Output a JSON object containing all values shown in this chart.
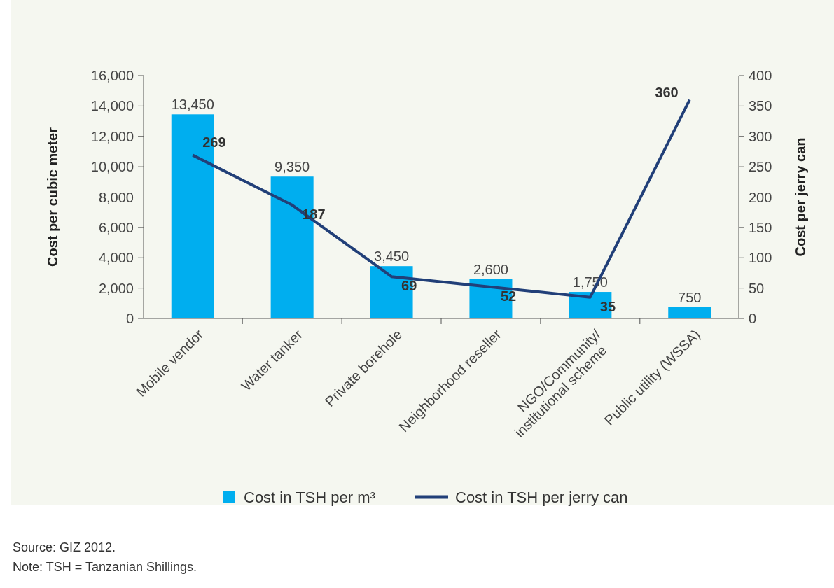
{
  "chart_data": {
    "type": "bar",
    "categories": [
      "Mobile vendor",
      "Water tanker",
      "Private borehole",
      "Neighborhood reseller",
      "NGO/Community/\ninstitutional scheme",
      "Public utility (WSSA)"
    ],
    "series": [
      {
        "name": "Cost in TSH per m³",
        "color": "#00aeef",
        "values": [
          13450,
          9350,
          3450,
          2600,
          1750,
          750
        ],
        "value_labels": [
          "13,450",
          "9,350",
          "3,450",
          "2,600",
          "1,750",
          "750"
        ]
      },
      {
        "name": "Cost in TSH per jerry can",
        "type": "line",
        "axis": "y2",
        "color": "#213f78",
        "values": [
          269,
          187,
          69,
          52,
          35,
          360
        ],
        "value_labels": [
          "269",
          "187",
          "69",
          "52",
          "35",
          "360"
        ]
      }
    ],
    "ylabel": "Cost per cubic meter",
    "y2label": "Cost per jerry can",
    "ylim": [
      0,
      16000
    ],
    "yticks": [
      {
        "value": 0,
        "label": "0"
      },
      {
        "value": 2000,
        "label": "2,000"
      },
      {
        "value": 4000,
        "label": "4,000"
      },
      {
        "value": 6000,
        "label": "6,000"
      },
      {
        "value": 8000,
        "label": "8,000"
      },
      {
        "value": 10000,
        "label": "10,000"
      },
      {
        "value": 12000,
        "label": "12,000"
      },
      {
        "value": 14000,
        "label": "14,000"
      },
      {
        "value": 16000,
        "label": "16,000"
      }
    ],
    "y2lim": [
      0,
      400
    ],
    "y2ticks": [
      0,
      50,
      100,
      150,
      200,
      250,
      300,
      350,
      400
    ],
    "legend": "bottom",
    "grid": false,
    "marker": "none",
    "annotations": [
      "Source: GIZ 2012.",
      "Note: TSH = Tanzanian Shillings."
    ]
  }
}
